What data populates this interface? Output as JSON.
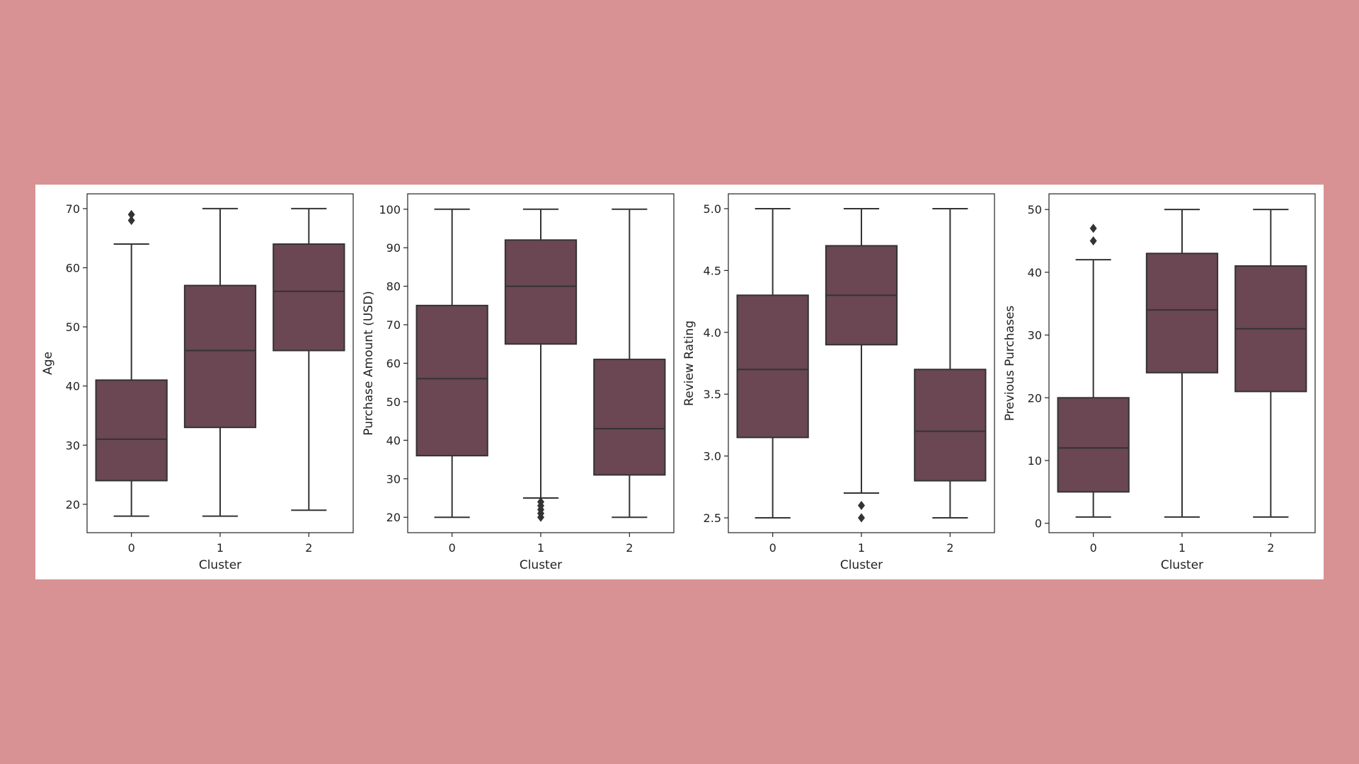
{
  "colors": {
    "page_background": "#d99294",
    "figure_background": "#ffffff",
    "box_fill": "#6a4753",
    "line": "#333333"
  },
  "chart_data": [
    {
      "type": "box",
      "xlabel": "Cluster",
      "ylabel": "Age",
      "categories": [
        "0",
        "1",
        "2"
      ],
      "ylim": [
        15.2,
        72.5
      ],
      "yticks": [
        20,
        30,
        40,
        50,
        60,
        70
      ],
      "boxes": [
        {
          "category": "0",
          "whisker_low": 18,
          "q1": 24,
          "median": 31,
          "q3": 41,
          "whisker_high": 64,
          "outliers": [
            68,
            69
          ]
        },
        {
          "category": "1",
          "whisker_low": 18,
          "q1": 33,
          "median": 46,
          "q3": 57,
          "whisker_high": 70,
          "outliers": []
        },
        {
          "category": "2",
          "whisker_low": 19,
          "q1": 46,
          "median": 56,
          "q3": 64,
          "whisker_high": 70,
          "outliers": []
        }
      ]
    },
    {
      "type": "box",
      "xlabel": "Cluster",
      "ylabel": "Purchase Amount (USD)",
      "categories": [
        "0",
        "1",
        "2"
      ],
      "ylim": [
        16,
        104
      ],
      "yticks": [
        20,
        30,
        40,
        50,
        60,
        70,
        80,
        90,
        100
      ],
      "boxes": [
        {
          "category": "0",
          "whisker_low": 20,
          "q1": 36,
          "median": 56,
          "q3": 75,
          "whisker_high": 100,
          "outliers": []
        },
        {
          "category": "1",
          "whisker_low": 25,
          "q1": 65,
          "median": 80,
          "q3": 92,
          "whisker_high": 100,
          "outliers": [
            20,
            21,
            22,
            23,
            24
          ]
        },
        {
          "category": "2",
          "whisker_low": 20,
          "q1": 31,
          "median": 43,
          "q3": 61,
          "whisker_high": 100,
          "outliers": []
        }
      ]
    },
    {
      "type": "box",
      "xlabel": "Cluster",
      "ylabel": "Review Rating",
      "categories": [
        "0",
        "1",
        "2"
      ],
      "ylim": [
        2.38,
        5.12
      ],
      "yticks": [
        "2.5",
        "3.0",
        "3.5",
        "4.0",
        "4.5",
        "5.0"
      ],
      "boxes": [
        {
          "category": "0",
          "whisker_low": 2.5,
          "q1": 3.15,
          "median": 3.7,
          "q3": 4.3,
          "whisker_high": 5.0,
          "outliers": []
        },
        {
          "category": "1",
          "whisker_low": 2.7,
          "q1": 3.9,
          "median": 4.3,
          "q3": 4.7,
          "whisker_high": 5.0,
          "outliers": [
            2.5,
            2.6
          ]
        },
        {
          "category": "2",
          "whisker_low": 2.5,
          "q1": 2.8,
          "median": 3.2,
          "q3": 3.7,
          "whisker_high": 5.0,
          "outliers": []
        }
      ]
    },
    {
      "type": "box",
      "xlabel": "Cluster",
      "ylabel": "Previous Purchases",
      "categories": [
        "0",
        "1",
        "2"
      ],
      "ylim": [
        -1.5,
        52.5
      ],
      "yticks": [
        0,
        10,
        20,
        30,
        40,
        50
      ],
      "boxes": [
        {
          "category": "0",
          "whisker_low": 1,
          "q1": 5,
          "median": 12,
          "q3": 20,
          "whisker_high": 42,
          "outliers": [
            45,
            47
          ]
        },
        {
          "category": "1",
          "whisker_low": 1,
          "q1": 24,
          "median": 34,
          "q3": 43,
          "whisker_high": 50,
          "outliers": []
        },
        {
          "category": "2",
          "whisker_low": 1,
          "q1": 21,
          "median": 31,
          "q3": 41,
          "whisker_high": 50,
          "outliers": []
        }
      ]
    }
  ]
}
